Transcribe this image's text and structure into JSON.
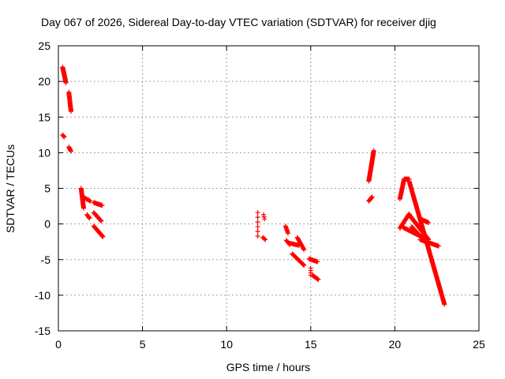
{
  "chart_data": {
    "type": "scatter",
    "title": "Day 067 of 2026, Sidereal Day-to-day VTEC variation (SDTVAR) for receiver djig",
    "xlabel": "GPS time / hours",
    "ylabel": "SDTVAR / TECUs",
    "xlim": [
      0,
      25
    ],
    "ylim": [
      -15,
      25
    ],
    "xticks": [
      0,
      5,
      10,
      15,
      20,
      25
    ],
    "yticks": [
      -15,
      -10,
      -5,
      0,
      5,
      10,
      15,
      20,
      25
    ],
    "grid": true,
    "marker": "plus",
    "color": "#ff0000",
    "segments": [
      {
        "x0": 0.25,
        "y0": 22.0,
        "x1": 0.45,
        "y1": 19.8,
        "n": 40
      },
      {
        "x0": 0.25,
        "y0": 12.5,
        "x1": 0.35,
        "y1": 12.2,
        "n": 5
      },
      {
        "x0": 0.62,
        "y0": 18.5,
        "x1": 0.75,
        "y1": 15.8,
        "n": 25
      },
      {
        "x0": 0.62,
        "y0": 10.8,
        "x1": 0.75,
        "y1": 10.2,
        "n": 8
      },
      {
        "x0": 1.35,
        "y0": 5.0,
        "x1": 1.5,
        "y1": 2.2,
        "n": 28
      },
      {
        "x0": 1.45,
        "y0": 3.8,
        "x1": 1.9,
        "y1": 3.2,
        "n": 10
      },
      {
        "x0": 1.7,
        "y0": 1.3,
        "x1": 1.85,
        "y1": 0.8,
        "n": 8
      },
      {
        "x0": 2.1,
        "y0": 3.0,
        "x1": 2.6,
        "y1": 2.6,
        "n": 18
      },
      {
        "x0": 2.1,
        "y0": 1.6,
        "x1": 2.55,
        "y1": 0.4,
        "n": 15
      },
      {
        "x0": 2.1,
        "y0": -0.3,
        "x1": 2.65,
        "y1": -1.8,
        "n": 28
      },
      {
        "x0": 11.85,
        "y0": 1.6,
        "x1": 11.85,
        "y1": -1.7,
        "n": 6
      },
      {
        "x0": 12.2,
        "y0": 1.3,
        "x1": 12.25,
        "y1": 0.7,
        "n": 3
      },
      {
        "x0": 12.15,
        "y0": -1.9,
        "x1": 12.3,
        "y1": -2.2,
        "n": 4
      },
      {
        "x0": 13.5,
        "y0": -0.3,
        "x1": 13.65,
        "y1": -1.3,
        "n": 8
      },
      {
        "x0": 13.55,
        "y0": -2.3,
        "x1": 13.75,
        "y1": -2.9,
        "n": 6
      },
      {
        "x0": 13.75,
        "y0": -2.7,
        "x1": 14.3,
        "y1": -3.0,
        "n": 12
      },
      {
        "x0": 14.2,
        "y0": -1.9,
        "x1": 14.6,
        "y1": -3.6,
        "n": 15
      },
      {
        "x0": 13.9,
        "y0": -4.2,
        "x1": 14.6,
        "y1": -5.8,
        "n": 25
      },
      {
        "x0": 14.9,
        "y0": -4.9,
        "x1": 15.4,
        "y1": -5.3,
        "n": 12
      },
      {
        "x0": 15.0,
        "y0": -6.2,
        "x1": 15.0,
        "y1": -7.2,
        "n": 4
      },
      {
        "x0": 15.1,
        "y0": -7.2,
        "x1": 15.45,
        "y1": -7.8,
        "n": 12
      },
      {
        "x0": 18.45,
        "y0": 6.0,
        "x1": 18.75,
        "y1": 10.3,
        "n": 40
      },
      {
        "x0": 18.45,
        "y0": 3.2,
        "x1": 18.65,
        "y1": 3.8,
        "n": 10
      },
      {
        "x0": 20.3,
        "y0": 3.5,
        "x1": 20.55,
        "y1": 6.3,
        "n": 25
      },
      {
        "x0": 20.55,
        "y0": 6.3,
        "x1": 20.85,
        "y1": 6.3,
        "n": 10
      },
      {
        "x0": 20.85,
        "y0": 6.0,
        "x1": 22.95,
        "y1": -11.3,
        "n": 160
      },
      {
        "x0": 20.3,
        "y0": -0.6,
        "x1": 20.85,
        "y1": 1.4,
        "n": 30
      },
      {
        "x0": 20.85,
        "y0": 1.3,
        "x1": 22.0,
        "y1": -2.2,
        "n": 80
      },
      {
        "x0": 20.5,
        "y0": -0.5,
        "x1": 21.6,
        "y1": -1.8,
        "n": 50
      },
      {
        "x0": 21.0,
        "y0": -0.4,
        "x1": 21.8,
        "y1": -2.5,
        "n": 50
      },
      {
        "x0": 21.6,
        "y0": 0.6,
        "x1": 22.0,
        "y1": 0.2,
        "n": 12
      },
      {
        "x0": 21.5,
        "y0": -2.2,
        "x1": 22.6,
        "y1": -3.1,
        "n": 30
      }
    ]
  }
}
